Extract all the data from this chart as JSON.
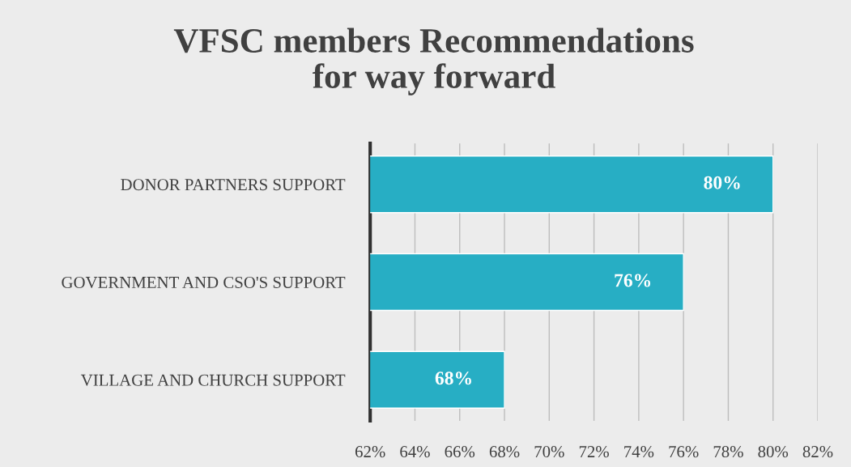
{
  "chart_data": {
    "type": "bar",
    "orientation": "horizontal",
    "title": "VFSC members Recommendations\nfor way forward",
    "categories": [
      "DONOR PARTNERS SUPPORT",
      "GOVERNMENT AND CSO'S SUPPORT",
      "VILLAGE AND CHURCH SUPPORT"
    ],
    "values": [
      80,
      76,
      68
    ],
    "color": "#27aec4",
    "value_labels": [
      "80%",
      "76%",
      "68%"
    ],
    "xlim": [
      62,
      82
    ],
    "xticks": [
      {
        "value": 62,
        "label": "62%"
      },
      {
        "value": 64,
        "label": "64%"
      },
      {
        "value": 66,
        "label": "66%"
      },
      {
        "value": 68,
        "label": "68%"
      },
      {
        "value": 70,
        "label": "70%"
      },
      {
        "value": 72,
        "label": "72%"
      },
      {
        "value": 74,
        "label": "74%"
      },
      {
        "value": 76,
        "label": "76%"
      },
      {
        "value": 78,
        "label": "78%"
      },
      {
        "value": 80,
        "label": "80%"
      },
      {
        "value": 82,
        "label": "82%"
      }
    ],
    "grid": "x"
  }
}
